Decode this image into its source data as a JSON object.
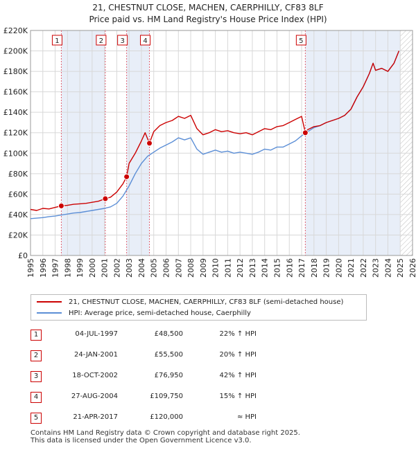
{
  "title_line1": "21, CHESTNUT CLOSE, MACHEN, CAERPHILLY, CF83 8LF",
  "title_line2": "Price paid vs. HM Land Registry's House Price Index (HPI)",
  "legend": {
    "property": "21, CHESTNUT CLOSE, MACHEN, CAERPHILLY, CF83 8LF (semi-detached house)",
    "hpi": "HPI: Average price, semi-detached house, Caerphilly"
  },
  "colors": {
    "property": "#cc0000",
    "hpi": "#5b8ed6",
    "shade": "#e8eef8",
    "grid": "#d8d8d8",
    "vline": "#e06070"
  },
  "chart_data": {
    "type": "line",
    "title": "Price paid vs. HM Land Registry's House Price Index (HPI)",
    "xlabel": "",
    "ylabel": "",
    "xlim": [
      1995,
      2026
    ],
    "ylim": [
      0,
      220000
    ],
    "x_ticks": [
      "1995",
      "1996",
      "1997",
      "1998",
      "1999",
      "2000",
      "2001",
      "2002",
      "2003",
      "2004",
      "2005",
      "2006",
      "2007",
      "2008",
      "2009",
      "2010",
      "2011",
      "2012",
      "2013",
      "2014",
      "2015",
      "2016",
      "2017",
      "2018",
      "2019",
      "2020",
      "2021",
      "2022",
      "2023",
      "2024",
      "2025",
      "2026"
    ],
    "y_ticks": [
      {
        "value": 0,
        "label": "£0"
      },
      {
        "value": 20000,
        "label": "£20K"
      },
      {
        "value": 40000,
        "label": "£40K"
      },
      {
        "value": 60000,
        "label": "£60K"
      },
      {
        "value": 80000,
        "label": "£80K"
      },
      {
        "value": 100000,
        "label": "£100K"
      },
      {
        "value": 120000,
        "label": "£120K"
      },
      {
        "value": 140000,
        "label": "£140K"
      },
      {
        "value": 160000,
        "label": "£160K"
      },
      {
        "value": 180000,
        "label": "£180K"
      },
      {
        "value": 200000,
        "label": "£200K"
      },
      {
        "value": 220000,
        "label": "£220K"
      }
    ],
    "shaded_ranges": [
      [
        1997.5,
        2001.07
      ],
      [
        2002.8,
        2004.65
      ],
      [
        2017.3,
        2025.0
      ]
    ],
    "hatched_from": 2025.0,
    "series": [
      {
        "name": "21, CHESTNUT CLOSE, MACHEN, CAERPHILLY, CF83 8LF (semi-detached house)",
        "color": "#cc0000",
        "x": [
          1995.0,
          1995.5,
          1996.0,
          1996.5,
          1997.0,
          1997.5,
          1998.0,
          1998.5,
          1999.0,
          1999.5,
          2000.0,
          2000.5,
          2001.07,
          2001.5,
          2002.0,
          2002.5,
          2002.8,
          2003.0,
          2003.5,
          2004.0,
          2004.3,
          2004.65,
          2005.0,
          2005.5,
          2006.0,
          2006.5,
          2007.0,
          2007.5,
          2008.0,
          2008.5,
          2009.0,
          2009.5,
          2010.0,
          2010.5,
          2011.0,
          2011.5,
          2012.0,
          2012.5,
          2013.0,
          2013.5,
          2014.0,
          2014.5,
          2015.0,
          2015.5,
          2016.0,
          2016.5,
          2017.0,
          2017.3,
          2017.5,
          2018.0,
          2018.5,
          2019.0,
          2019.5,
          2020.0,
          2020.5,
          2021.0,
          2021.5,
          2022.0,
          2022.5,
          2022.8,
          2023.0,
          2023.5,
          2024.0,
          2024.5,
          2024.9
        ],
        "values": [
          45000,
          44000,
          46000,
          45500,
          47000,
          48500,
          49000,
          50000,
          50500,
          51000,
          52000,
          53000,
          55500,
          57000,
          62000,
          70000,
          76950,
          90000,
          100000,
          112000,
          120000,
          109750,
          121000,
          127000,
          130000,
          132000,
          136000,
          134000,
          137000,
          124000,
          118000,
          120000,
          123000,
          121000,
          122000,
          120000,
          119000,
          120000,
          118000,
          121000,
          124000,
          123000,
          126000,
          127000,
          130000,
          133000,
          136000,
          120000,
          123000,
          126000,
          127000,
          130000,
          132000,
          134000,
          137000,
          143000,
          155000,
          165000,
          178000,
          188000,
          181000,
          183000,
          180000,
          188000,
          200000
        ]
      },
      {
        "name": "HPI: Average price, semi-detached house, Caerphilly",
        "color": "#5b8ed6",
        "x": [
          1995.0,
          1995.5,
          1996.0,
          1996.5,
          1997.0,
          1997.5,
          1998.0,
          1998.5,
          1999.0,
          1999.5,
          2000.0,
          2000.5,
          2001.0,
          2001.5,
          2002.0,
          2002.5,
          2003.0,
          2003.5,
          2004.0,
          2004.5,
          2005.0,
          2005.5,
          2006.0,
          2006.5,
          2007.0,
          2007.5,
          2008.0,
          2008.5,
          2009.0,
          2009.5,
          2010.0,
          2010.5,
          2011.0,
          2011.5,
          2012.0,
          2012.5,
          2013.0,
          2013.5,
          2014.0,
          2014.5,
          2015.0,
          2015.5,
          2016.0,
          2016.5,
          2017.0,
          2017.5,
          2018.0,
          2018.5,
          2019.0,
          2019.5,
          2020.0,
          2020.5,
          2021.0,
          2021.5,
          2022.0,
          2022.5,
          2022.8,
          2023.0,
          2023.5,
          2024.0,
          2024.5,
          2024.9
        ],
        "values": [
          36000,
          36500,
          37000,
          38000,
          38500,
          39500,
          40500,
          41500,
          42000,
          43000,
          44000,
          45000,
          46000,
          47500,
          51000,
          58000,
          68000,
          80000,
          90000,
          97000,
          101000,
          105000,
          108000,
          111000,
          115000,
          113000,
          115000,
          104000,
          99000,
          101000,
          103000,
          101000,
          102000,
          100000,
          101000,
          100000,
          99000,
          101000,
          104000,
          103000,
          106000,
          106000,
          109000,
          112000,
          117000,
          121000,
          125000,
          127000,
          130000,
          132000,
          134000,
          137000,
          143000,
          155000,
          165000,
          178000,
          188000,
          181000,
          183000,
          180000,
          188000,
          200000
        ]
      }
    ],
    "sales": [
      {
        "num": "1",
        "x": 1997.5,
        "price": 48500
      },
      {
        "num": "2",
        "x": 2001.07,
        "price": 55500
      },
      {
        "num": "3",
        "x": 2002.8,
        "price": 76950
      },
      {
        "num": "4",
        "x": 2004.65,
        "price": 109750
      },
      {
        "num": "5",
        "x": 2017.3,
        "price": 120000
      }
    ]
  },
  "sales_table": [
    {
      "num": "1",
      "date": "04-JUL-1997",
      "price": "£48,500",
      "hpi": "22% ↑ HPI"
    },
    {
      "num": "2",
      "date": "24-JAN-2001",
      "price": "£55,500",
      "hpi": "20% ↑ HPI"
    },
    {
      "num": "3",
      "date": "18-OCT-2002",
      "price": "£76,950",
      "hpi": "42% ↑ HPI"
    },
    {
      "num": "4",
      "date": "27-AUG-2004",
      "price": "£109,750",
      "hpi": "15% ↑ HPI"
    },
    {
      "num": "5",
      "date": "21-APR-2017",
      "price": "£120,000",
      "hpi": "≈ HPI"
    }
  ],
  "footer": {
    "line1": "Contains HM Land Registry data © Crown copyright and database right 2025.",
    "line2": "This data is licensed under the Open Government Licence v3.0."
  }
}
